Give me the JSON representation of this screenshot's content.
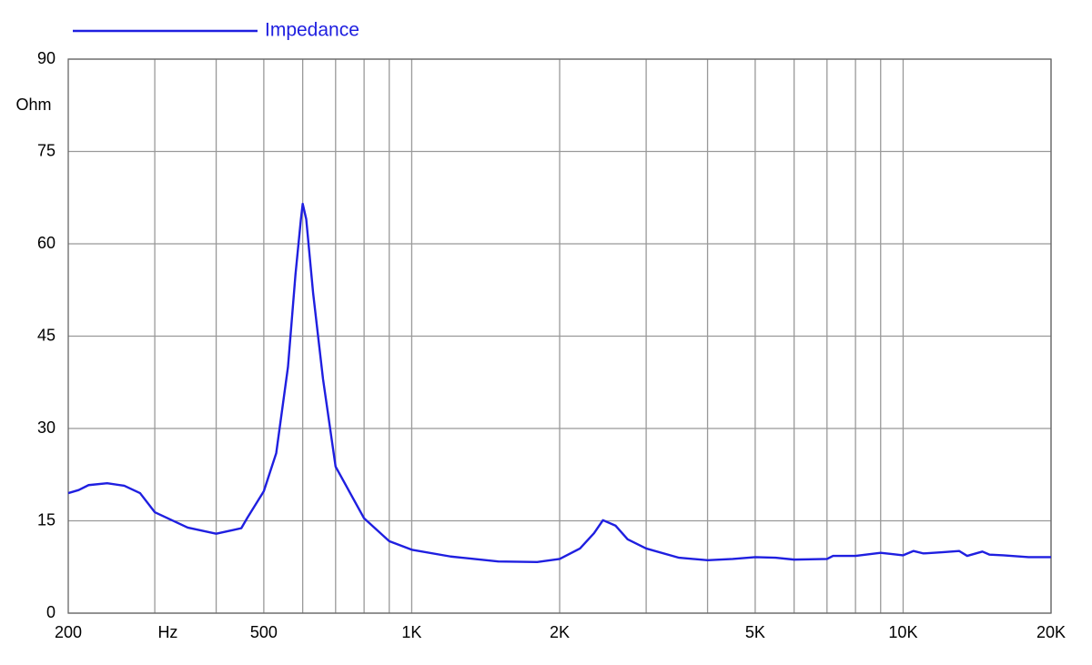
{
  "chart_data": {
    "type": "line",
    "xlabel": "Hz",
    "ylabel": "Ohm",
    "log_x": true,
    "grid": true,
    "xlim": [
      200,
      20000
    ],
    "ylim": [
      0,
      90
    ],
    "yticks": [
      0,
      15,
      30,
      45,
      60,
      75,
      90
    ],
    "xticks": [
      200,
      {
        "value": 500,
        "label": "500"
      },
      {
        "value": 1000,
        "label": "1K"
      },
      {
        "value": 2000,
        "label": "2K"
      },
      {
        "value": 5000,
        "label": "5K"
      },
      {
        "value": 10000,
        "label": "10K"
      },
      {
        "value": 20000,
        "label": "20K"
      }
    ],
    "xgrid": [
      300,
      400,
      500,
      600,
      700,
      800,
      900,
      1000,
      2000,
      3000,
      4000,
      5000,
      6000,
      7000,
      8000,
      9000,
      10000,
      20000
    ],
    "series": [
      {
        "name": "Impedance",
        "color": "#1f1fe0",
        "x": [
          200,
          210,
          220,
          240,
          260,
          280,
          300,
          350,
          400,
          450,
          463,
          500,
          530,
          560,
          580,
          595,
          600,
          610,
          630,
          660,
          700,
          800,
          900,
          1000,
          1200,
          1500,
          1800,
          2000,
          2200,
          2350,
          2450,
          2600,
          2750,
          3000,
          3500,
          4000,
          4500,
          5000,
          5500,
          6000,
          7000,
          7200,
          8000,
          9000,
          9500,
          10000,
          10500,
          11000,
          12000,
          13000,
          13500,
          14500,
          15000,
          16000,
          18000,
          20000
        ],
        "values": [
          19.5,
          20,
          20.8,
          21.1,
          20.7,
          19.5,
          16.4,
          13.9,
          12.9,
          13.8,
          15.5,
          19.8,
          26,
          40,
          55,
          64,
          66.5,
          64,
          52,
          38,
          23.8,
          15.4,
          11.7,
          10.3,
          9.2,
          8.4,
          8.3,
          8.8,
          10.5,
          13,
          15.1,
          14.2,
          12,
          10.5,
          9,
          8.6,
          8.8,
          9.1,
          9,
          8.7,
          8.8,
          9.3,
          9.3,
          9.8,
          9.6,
          9.4,
          10.1,
          9.7,
          9.9,
          10.1,
          9.3,
          10,
          9.5,
          9.4,
          9.1,
          9.1
        ]
      }
    ]
  }
}
